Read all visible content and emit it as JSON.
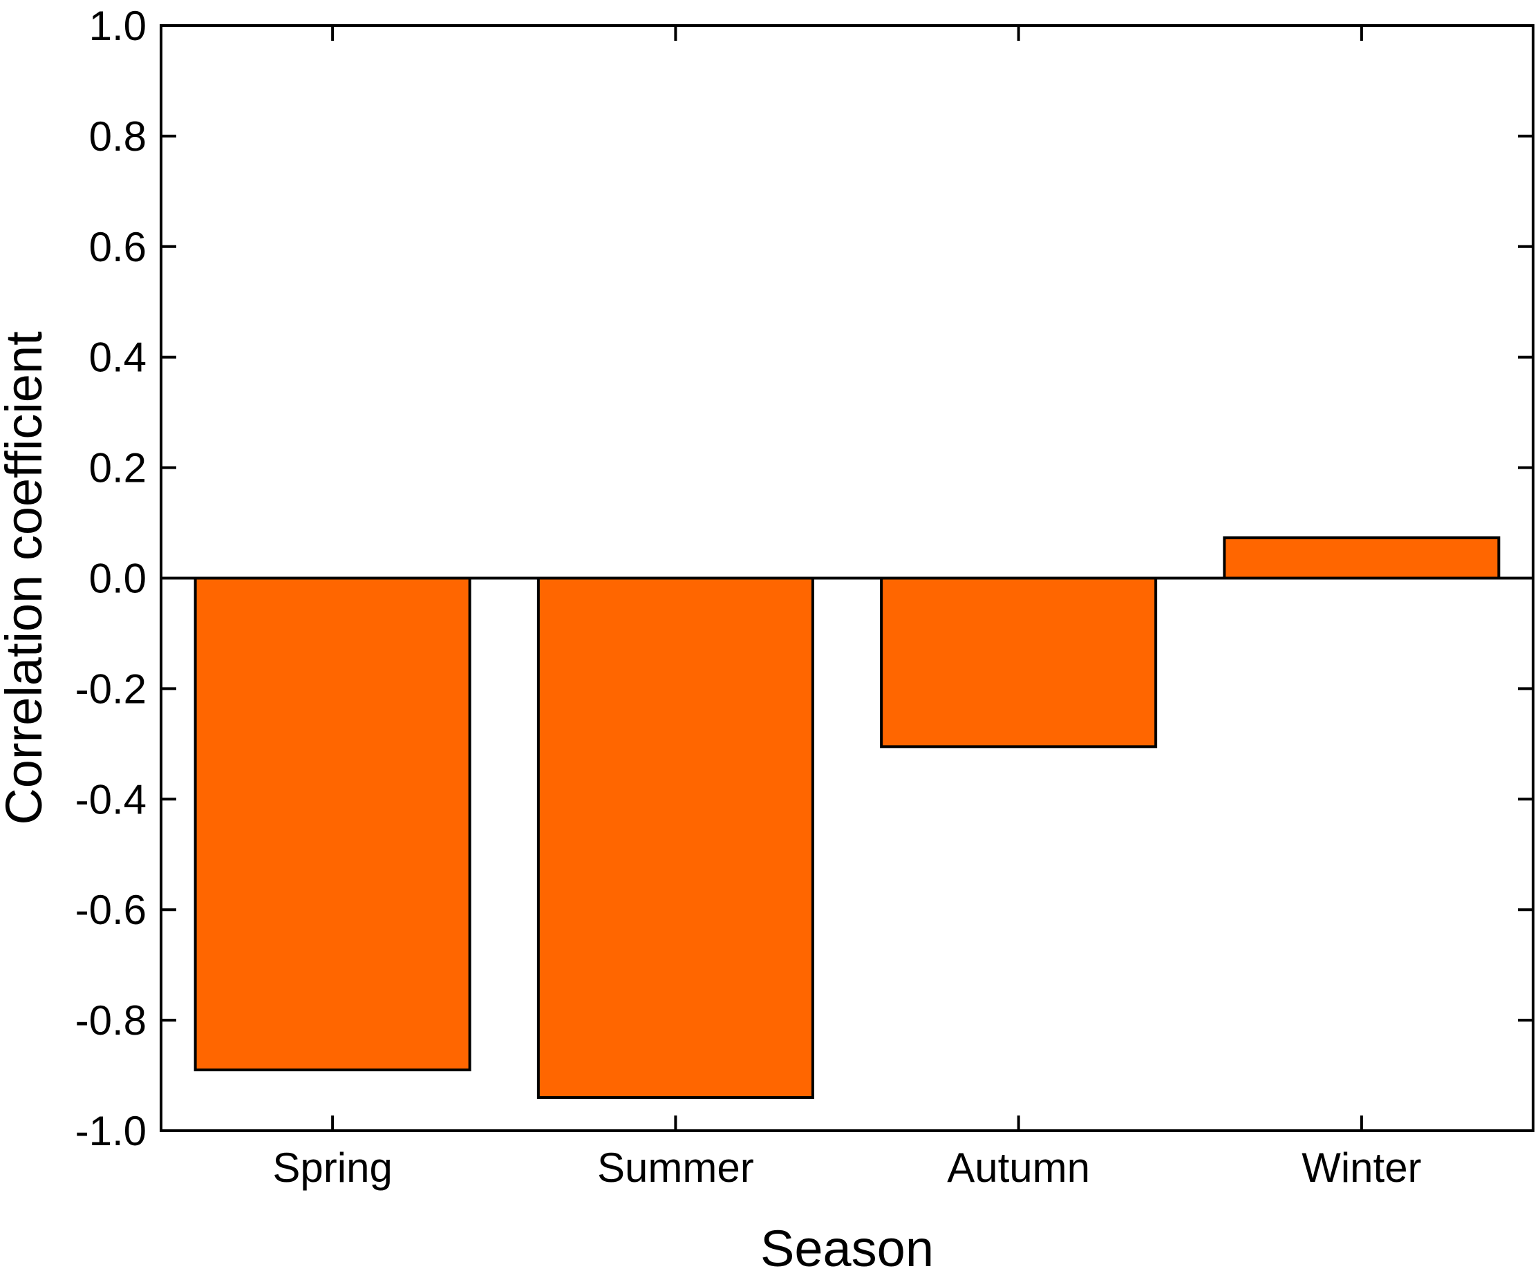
{
  "chart_data": {
    "type": "bar",
    "title": "",
    "xlabel": "Season",
    "ylabel": "Correlation coefficient",
    "categories": [
      "Spring",
      "Summer",
      "Autumn",
      "Winter"
    ],
    "values": [
      -0.89,
      -0.94,
      -0.305,
      0.073
    ],
    "ylim": [
      -1.0,
      1.0
    ],
    "yticks": [
      "-1.0",
      "-0.8",
      "-0.6",
      "-0.4",
      "-0.2",
      "0.0",
      "0.2",
      "0.4",
      "0.6",
      "0.8",
      "1.0"
    ],
    "grid": false,
    "legend": "none",
    "bar_color": "#ff6600"
  }
}
